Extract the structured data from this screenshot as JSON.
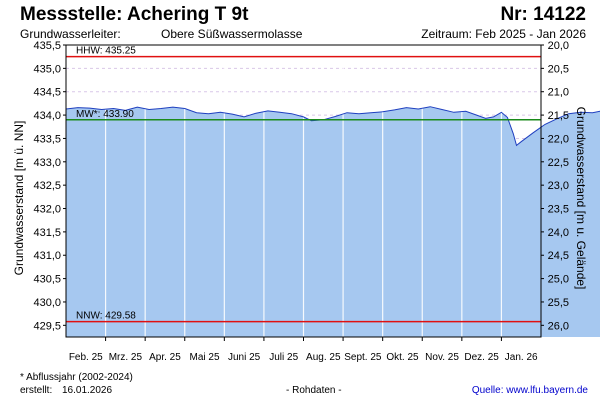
{
  "header": {
    "title": "Messstelle: Achering T 9t",
    "nr": "Nr: 14122",
    "aquifer_label": "Grundwasserleiter:",
    "aquifer_value": "Obere Süßwassermolasse",
    "period": "Zeitraum: Feb 2025 - Jan 2026"
  },
  "footer": {
    "footnote": "* Abflussjahr (2002-2024)",
    "created_label": "erstellt:",
    "created_value": "16.01.2026",
    "rawdata": "- Rohdaten -",
    "source_label": "Quelle:",
    "source_url_text": "www.lfu.bayern.de"
  },
  "chart_data": {
    "type": "area",
    "ylabel": "Grundwasserstand [m ü. NN]",
    "ylabel_right": "Grundwasserstand [m u. Gelände]",
    "ylim": [
      429.25,
      435.5
    ],
    "yticks": [
      "435,5",
      "435,0",
      "434,5",
      "434,0",
      "433,5",
      "433,0",
      "432,5",
      "432,0",
      "431,5",
      "431,0",
      "430,5",
      "430,0",
      "429,5"
    ],
    "y2ticks": [
      "20,0",
      "20,5",
      "21,0",
      "21,5",
      "22,0",
      "22,5",
      "23,0",
      "23,5",
      "24,0",
      "24,5",
      "25,0",
      "25,5",
      "26,0"
    ],
    "months": [
      "Feb. 25",
      "Mrz. 25",
      "Apr. 25",
      "Mai 25",
      "Juni 25",
      "Juli 25",
      "Aug. 25",
      "Sept. 25",
      "Okt. 25",
      "Nov. 25",
      "Dez. 25",
      "Jan. 26"
    ],
    "grid": true,
    "colors": {
      "area": "#a6c8f0",
      "line": "#1f3fbf",
      "hhw": "#e01010",
      "mw": "#1a8a1a",
      "nnw": "#e01010"
    },
    "reference_lines": [
      {
        "key": "hhw",
        "label": "HHW: 435.25",
        "value": 435.25
      },
      {
        "key": "mw",
        "label": "MW*: 433.90",
        "value": 433.9
      },
      {
        "key": "nnw",
        "label": "NNW: 429.58",
        "value": 429.58
      }
    ],
    "series": [
      {
        "values": [
          [
            0.0,
            434.13
          ],
          [
            0.3,
            434.16
          ],
          [
            0.6,
            434.15
          ],
          [
            0.9,
            434.12
          ],
          [
            1.2,
            434.14
          ],
          [
            1.5,
            434.1
          ],
          [
            1.8,
            434.17
          ],
          [
            2.1,
            434.12
          ],
          [
            2.4,
            434.14
          ],
          [
            2.7,
            434.17
          ],
          [
            3.0,
            434.14
          ],
          [
            3.3,
            434.05
          ],
          [
            3.6,
            434.03
          ],
          [
            3.9,
            434.06
          ],
          [
            4.2,
            434.02
          ],
          [
            4.5,
            433.96
          ],
          [
            4.8,
            434.04
          ],
          [
            5.1,
            434.09
          ],
          [
            5.4,
            434.06
          ],
          [
            5.7,
            434.03
          ],
          [
            6.0,
            433.96
          ],
          [
            6.2,
            433.88
          ],
          [
            6.5,
            433.9
          ],
          [
            6.8,
            433.97
          ],
          [
            7.1,
            434.05
          ],
          [
            7.4,
            434.03
          ],
          [
            7.7,
            434.05
          ],
          [
            8.0,
            434.07
          ],
          [
            8.3,
            434.11
          ],
          [
            8.6,
            434.16
          ],
          [
            8.9,
            434.13
          ],
          [
            9.2,
            434.18
          ],
          [
            9.5,
            434.12
          ],
          [
            9.8,
            434.06
          ],
          [
            10.1,
            434.08
          ],
          [
            10.4,
            433.99
          ],
          [
            10.6,
            433.93
          ],
          [
            10.8,
            433.96
          ],
          [
            11.0,
            434.06
          ],
          [
            11.15,
            433.95
          ],
          [
            11.3,
            433.6
          ],
          [
            11.38,
            433.35
          ],
          [
            11.5,
            433.43
          ],
          [
            11.8,
            433.62
          ],
          [
            12.1,
            433.8
          ],
          [
            12.4,
            433.92
          ],
          [
            12.7,
            434.03
          ],
          [
            13.0,
            434.06
          ],
          [
            13.3,
            434.05
          ],
          [
            13.6,
            434.1
          ],
          [
            13.9,
            434.2
          ],
          [
            14.2,
            434.25
          ],
          [
            14.5,
            434.28
          ],
          [
            14.8,
            434.36
          ],
          [
            15.0,
            434.38
          ],
          [
            15.2,
            434.44
          ],
          [
            15.4,
            434.4
          ]
        ]
      }
    ]
  }
}
